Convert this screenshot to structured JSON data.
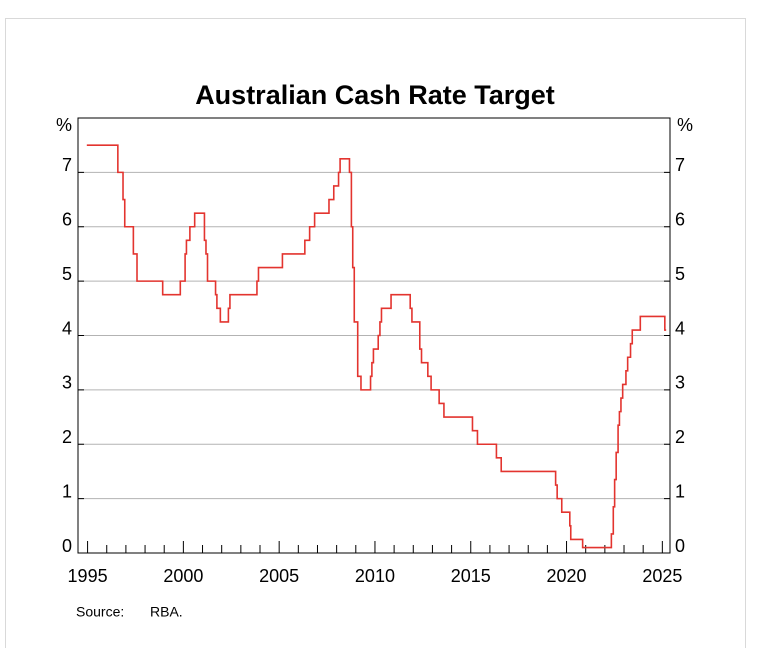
{
  "chart_data": {
    "type": "line",
    "step": "post",
    "title": "Australian Cash Rate Target",
    "ylabel": "%",
    "y2label": "%",
    "source_label": "Source:",
    "source": "RBA.",
    "xlim": [
      1994.5,
      2025.4
    ],
    "xticks": [
      1995,
      2000,
      2005,
      2010,
      2015,
      2020,
      2025
    ],
    "x_minor_ticks": [
      1996,
      1997,
      1998,
      1999,
      2001,
      2002,
      2003,
      2004,
      2006,
      2007,
      2008,
      2009,
      2011,
      2012,
      2013,
      2014,
      2016,
      2017,
      2018,
      2019,
      2021,
      2022,
      2023,
      2024
    ],
    "ylim": [
      0,
      8
    ],
    "yticks": [
      0,
      1,
      2,
      3,
      4,
      5,
      6,
      7
    ],
    "y2lim": [
      0,
      8
    ],
    "y2ticks": [
      0,
      1,
      2,
      3,
      4,
      5,
      6,
      7
    ],
    "grid": true,
    "series": [
      {
        "name": "Cash rate target",
        "color": "#e3342f",
        "x": [
          1994.96,
          1996.58,
          1996.85,
          1996.94,
          1997.39,
          1997.58,
          1998.92,
          1999.84,
          2000.09,
          2000.16,
          2000.34,
          2000.59,
          2001.1,
          2001.18,
          2001.26,
          2001.68,
          2001.75,
          2001.93,
          2002.35,
          2002.43,
          2003.84,
          2003.92,
          2005.17,
          2006.34,
          2006.59,
          2006.85,
          2007.6,
          2007.85,
          2008.1,
          2008.18,
          2008.67,
          2008.77,
          2008.84,
          2008.92,
          2009.1,
          2009.27,
          2009.77,
          2009.84,
          2009.92,
          2010.17,
          2010.26,
          2010.34,
          2010.84,
          2011.84,
          2011.93,
          2012.34,
          2012.43,
          2012.76,
          2012.93,
          2013.35,
          2013.6,
          2015.09,
          2015.35,
          2016.34,
          2016.59,
          2019.43,
          2019.51,
          2019.75,
          2020.17,
          2020.22,
          2020.84,
          2022.34,
          2022.44,
          2022.51,
          2022.59,
          2022.69,
          2022.76,
          2022.84,
          2022.93,
          2023.1,
          2023.19,
          2023.34,
          2023.43,
          2023.85,
          2025.13,
          2025.2
        ],
        "values": [
          7.5,
          7.0,
          6.5,
          6.0,
          5.5,
          5.0,
          4.75,
          5.0,
          5.5,
          5.75,
          6.0,
          6.25,
          5.75,
          5.5,
          5.0,
          4.75,
          4.5,
          4.25,
          4.5,
          4.75,
          5.0,
          5.25,
          5.5,
          5.75,
          6.0,
          6.25,
          6.5,
          6.75,
          7.0,
          7.25,
          7.0,
          6.0,
          5.25,
          4.25,
          3.25,
          3.0,
          3.25,
          3.5,
          3.75,
          4.0,
          4.25,
          4.5,
          4.75,
          4.5,
          4.25,
          3.75,
          3.5,
          3.25,
          3.0,
          2.75,
          2.5,
          2.25,
          2.0,
          1.75,
          1.5,
          1.25,
          1.0,
          0.75,
          0.5,
          0.25,
          0.1,
          0.35,
          0.85,
          1.35,
          1.85,
          2.35,
          2.6,
          2.85,
          3.1,
          3.35,
          3.6,
          3.85,
          4.1,
          4.35,
          4.1,
          4.1
        ]
      }
    ]
  }
}
